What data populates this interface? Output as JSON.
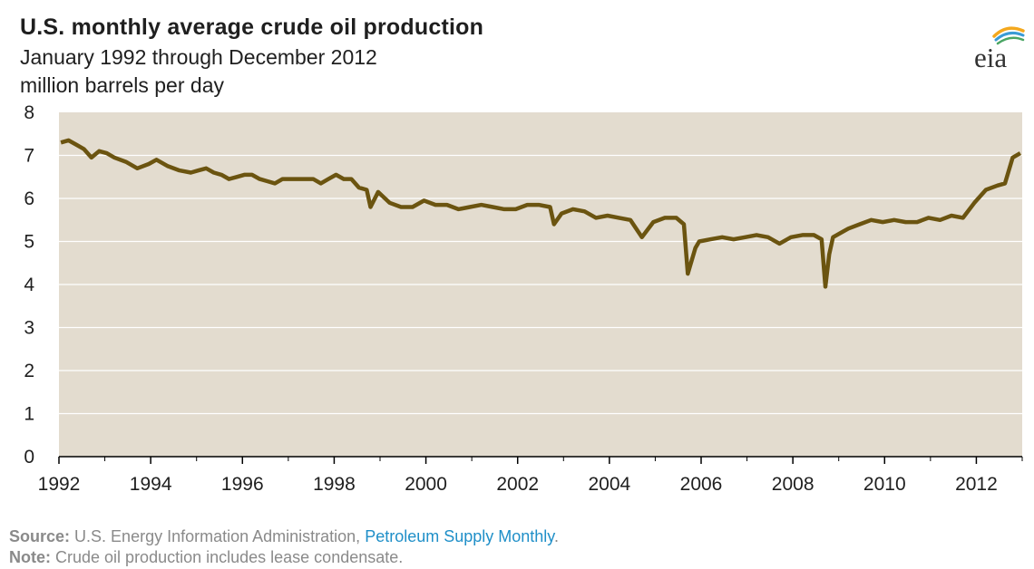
{
  "header": {
    "title": "U.S. monthly average crude oil production",
    "subtitle": "January 1992 through December 2012",
    "units": "million barrels per day"
  },
  "logo": {
    "text": "eia",
    "swoosh_colors": [
      "#f4a81d",
      "#3a9bd5",
      "#4aa564"
    ]
  },
  "footer": {
    "source_label": "Source:",
    "source_text": "U.S. Energy Information Administration,",
    "source_link": "Petroleum Supply Monthly",
    "source_end": ".",
    "note_label": "Note:",
    "note_text": "Crude oil production includes lease condensate."
  },
  "colors": {
    "line": "#6b5410",
    "area": "#e3dccf",
    "grid": "#ffffff",
    "axis": "#000000"
  },
  "chart_data": {
    "type": "area",
    "title": "U.S. monthly average crude oil production",
    "subtitle": "January 1992 through December 2012",
    "ylabel": "million barrels per day",
    "xlabel": "",
    "xlim": [
      "1992-01",
      "2012-12"
    ],
    "ylim": [
      0,
      8
    ],
    "yticks": [
      "0",
      "1",
      "2",
      "3",
      "4",
      "5",
      "6",
      "7",
      "8"
    ],
    "xticks": [
      "1992",
      "1994",
      "1996",
      "1998",
      "2000",
      "2002",
      "2004",
      "2006",
      "2008",
      "2010",
      "2012"
    ],
    "grid": true,
    "series": [
      {
        "points": [
          [
            "1992-01",
            7.3
          ],
          [
            "1992-03",
            7.35
          ],
          [
            "1992-05",
            7.25
          ],
          [
            "1992-07",
            7.15
          ],
          [
            "1992-09",
            6.95
          ],
          [
            "1992-11",
            7.1
          ],
          [
            "1993-01",
            7.05
          ],
          [
            "1993-03",
            6.95
          ],
          [
            "1993-06",
            6.85
          ],
          [
            "1993-09",
            6.7
          ],
          [
            "1993-12",
            6.8
          ],
          [
            "1994-02",
            6.9
          ],
          [
            "1994-05",
            6.75
          ],
          [
            "1994-08",
            6.65
          ],
          [
            "1994-11",
            6.6
          ],
          [
            "1995-01",
            6.65
          ],
          [
            "1995-03",
            6.7
          ],
          [
            "1995-05",
            6.6
          ],
          [
            "1995-07",
            6.55
          ],
          [
            "1995-09",
            6.45
          ],
          [
            "1995-11",
            6.5
          ],
          [
            "1996-01",
            6.55
          ],
          [
            "1996-03",
            6.55
          ],
          [
            "1996-05",
            6.45
          ],
          [
            "1996-07",
            6.4
          ],
          [
            "1996-09",
            6.35
          ],
          [
            "1996-11",
            6.45
          ],
          [
            "1997-01",
            6.45
          ],
          [
            "1997-04",
            6.45
          ],
          [
            "1997-07",
            6.45
          ],
          [
            "1997-09",
            6.35
          ],
          [
            "1997-11",
            6.45
          ],
          [
            "1998-01",
            6.55
          ],
          [
            "1998-03",
            6.45
          ],
          [
            "1998-05",
            6.45
          ],
          [
            "1998-07",
            6.25
          ],
          [
            "1998-09",
            6.2
          ],
          [
            "1998-10",
            5.8
          ],
          [
            "1998-12",
            6.15
          ],
          [
            "1999-03",
            5.9
          ],
          [
            "1999-06",
            5.8
          ],
          [
            "1999-09",
            5.8
          ],
          [
            "1999-12",
            5.95
          ],
          [
            "2000-03",
            5.85
          ],
          [
            "2000-06",
            5.85
          ],
          [
            "2000-09",
            5.75
          ],
          [
            "2000-12",
            5.8
          ],
          [
            "2001-03",
            5.85
          ],
          [
            "2001-06",
            5.8
          ],
          [
            "2001-09",
            5.75
          ],
          [
            "2001-12",
            5.75
          ],
          [
            "2002-03",
            5.85
          ],
          [
            "2002-06",
            5.85
          ],
          [
            "2002-09",
            5.8
          ],
          [
            "2002-10",
            5.4
          ],
          [
            "2002-12",
            5.65
          ],
          [
            "2003-03",
            5.75
          ],
          [
            "2003-06",
            5.7
          ],
          [
            "2003-09",
            5.55
          ],
          [
            "2003-12",
            5.6
          ],
          [
            "2004-03",
            5.55
          ],
          [
            "2004-06",
            5.5
          ],
          [
            "2004-09",
            5.1
          ],
          [
            "2004-12",
            5.45
          ],
          [
            "2005-03",
            5.55
          ],
          [
            "2005-06",
            5.55
          ],
          [
            "2005-08",
            5.4
          ],
          [
            "2005-09",
            4.25
          ],
          [
            "2005-10",
            4.55
          ],
          [
            "2005-11",
            4.85
          ],
          [
            "2005-12",
            5.0
          ],
          [
            "2006-03",
            5.05
          ],
          [
            "2006-06",
            5.1
          ],
          [
            "2006-09",
            5.05
          ],
          [
            "2006-12",
            5.1
          ],
          [
            "2007-03",
            5.15
          ],
          [
            "2007-06",
            5.1
          ],
          [
            "2007-09",
            4.95
          ],
          [
            "2007-12",
            5.1
          ],
          [
            "2008-03",
            5.15
          ],
          [
            "2008-06",
            5.15
          ],
          [
            "2008-08",
            5.05
          ],
          [
            "2008-09",
            3.95
          ],
          [
            "2008-10",
            4.7
          ],
          [
            "2008-11",
            5.1
          ],
          [
            "2008-12",
            5.15
          ],
          [
            "2009-03",
            5.3
          ],
          [
            "2009-06",
            5.4
          ],
          [
            "2009-09",
            5.5
          ],
          [
            "2009-12",
            5.45
          ],
          [
            "2010-03",
            5.5
          ],
          [
            "2010-06",
            5.45
          ],
          [
            "2010-09",
            5.45
          ],
          [
            "2010-12",
            5.55
          ],
          [
            "2011-03",
            5.5
          ],
          [
            "2011-06",
            5.6
          ],
          [
            "2011-09",
            5.55
          ],
          [
            "2011-12",
            5.9
          ],
          [
            "2012-03",
            6.2
          ],
          [
            "2012-06",
            6.3
          ],
          [
            "2012-08",
            6.35
          ],
          [
            "2012-10",
            6.95
          ],
          [
            "2012-12",
            7.05
          ]
        ]
      }
    ]
  }
}
